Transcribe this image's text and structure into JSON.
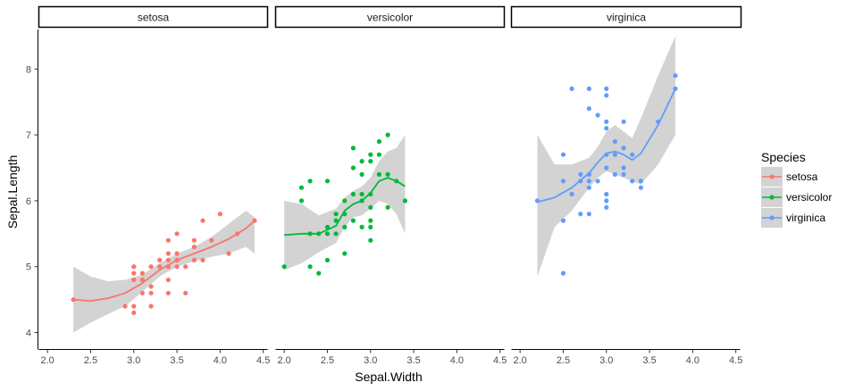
{
  "chart_data": {
    "type": "scatter",
    "facet_variable": "Species",
    "facets": [
      "setosa",
      "versicolor",
      "virginica"
    ],
    "xlabel": "Sepal.Width",
    "ylabel": "Sepal.Length",
    "xlim": [
      1.9,
      4.55
    ],
    "ylim": [
      3.75,
      8.6
    ],
    "x_ticks": [
      2.0,
      2.5,
      3.0,
      3.5,
      4.0,
      4.5
    ],
    "x_tick_labels": [
      "2.0",
      "2.5",
      "3.0",
      "3.5",
      "4.0",
      "4.5"
    ],
    "y_ticks": [
      4,
      5,
      6,
      7,
      8
    ],
    "y_tick_labels": [
      "4",
      "5",
      "6",
      "7",
      "8"
    ],
    "grid": false,
    "smoother": "loess with confidence band",
    "legend": {
      "title": "Species",
      "position": "right",
      "entries": [
        "setosa",
        "versicolor",
        "virginica"
      ]
    },
    "colors": {
      "setosa": "#F8766D",
      "versicolor": "#00BA38",
      "virginica": "#619CFF",
      "band": "#D3D3D3"
    },
    "series": [
      {
        "name": "setosa",
        "points": [
          [
            2.3,
            4.5
          ],
          [
            2.9,
            4.4
          ],
          [
            3.0,
            4.3
          ],
          [
            3.0,
            4.4
          ],
          [
            3.0,
            4.8
          ],
          [
            3.0,
            4.9
          ],
          [
            3.0,
            5.0
          ],
          [
            3.1,
            4.6
          ],
          [
            3.1,
            4.8
          ],
          [
            3.1,
            4.9
          ],
          [
            3.2,
            4.4
          ],
          [
            3.2,
            4.6
          ],
          [
            3.2,
            4.7
          ],
          [
            3.2,
            5.0
          ],
          [
            3.3,
            5.0
          ],
          [
            3.3,
            5.1
          ],
          [
            3.4,
            4.6
          ],
          [
            3.4,
            4.8
          ],
          [
            3.4,
            5.0
          ],
          [
            3.4,
            5.1
          ],
          [
            3.4,
            5.2
          ],
          [
            3.4,
            5.4
          ],
          [
            3.5,
            5.0
          ],
          [
            3.5,
            5.1
          ],
          [
            3.5,
            5.2
          ],
          [
            3.5,
            5.5
          ],
          [
            3.6,
            4.6
          ],
          [
            3.6,
            5.0
          ],
          [
            3.7,
            5.1
          ],
          [
            3.7,
            5.3
          ],
          [
            3.7,
            5.4
          ],
          [
            3.8,
            5.1
          ],
          [
            3.8,
            5.7
          ],
          [
            3.9,
            5.4
          ],
          [
            4.0,
            5.8
          ],
          [
            4.1,
            5.2
          ],
          [
            4.2,
            5.5
          ],
          [
            4.4,
            5.7
          ],
          [
            3.0,
            5.0
          ],
          [
            3.4,
            5.0
          ]
        ],
        "fit": [
          [
            2.3,
            4.5
          ],
          [
            2.5,
            4.48
          ],
          [
            2.7,
            4.52
          ],
          [
            2.9,
            4.6
          ],
          [
            3.1,
            4.75
          ],
          [
            3.3,
            4.95
          ],
          [
            3.5,
            5.1
          ],
          [
            3.7,
            5.2
          ],
          [
            3.9,
            5.3
          ],
          [
            4.1,
            5.42
          ],
          [
            4.3,
            5.58
          ],
          [
            4.4,
            5.7
          ]
        ],
        "band_upper": [
          [
            2.3,
            5.0
          ],
          [
            2.5,
            4.85
          ],
          [
            2.7,
            4.78
          ],
          [
            2.9,
            4.8
          ],
          [
            3.1,
            4.88
          ],
          [
            3.3,
            5.05
          ],
          [
            3.5,
            5.2
          ],
          [
            3.7,
            5.3
          ],
          [
            3.9,
            5.45
          ],
          [
            4.1,
            5.65
          ],
          [
            4.3,
            5.85
          ],
          [
            4.4,
            5.75
          ]
        ],
        "band_lower": [
          [
            2.3,
            4.0
          ],
          [
            2.5,
            4.15
          ],
          [
            2.7,
            4.28
          ],
          [
            2.9,
            4.4
          ],
          [
            3.1,
            4.62
          ],
          [
            3.3,
            4.85
          ],
          [
            3.5,
            5.0
          ],
          [
            3.7,
            5.08
          ],
          [
            3.9,
            5.15
          ],
          [
            4.1,
            5.2
          ],
          [
            4.3,
            5.3
          ],
          [
            4.4,
            5.2
          ]
        ]
      },
      {
        "name": "versicolor",
        "points": [
          [
            2.0,
            5.0
          ],
          [
            2.2,
            6.0
          ],
          [
            2.2,
            6.2
          ],
          [
            2.3,
            5.0
          ],
          [
            2.3,
            5.5
          ],
          [
            2.3,
            6.3
          ],
          [
            2.4,
            4.9
          ],
          [
            2.4,
            5.5
          ],
          [
            2.5,
            5.1
          ],
          [
            2.5,
            5.5
          ],
          [
            2.5,
            5.6
          ],
          [
            2.5,
            6.3
          ],
          [
            2.6,
            5.5
          ],
          [
            2.6,
            5.7
          ],
          [
            2.6,
            5.8
          ],
          [
            2.7,
            5.2
          ],
          [
            2.7,
            5.6
          ],
          [
            2.7,
            5.8
          ],
          [
            2.7,
            6.0
          ],
          [
            2.8,
            5.7
          ],
          [
            2.8,
            6.1
          ],
          [
            2.8,
            6.5
          ],
          [
            2.8,
            6.8
          ],
          [
            2.9,
            5.6
          ],
          [
            2.9,
            6.0
          ],
          [
            2.9,
            6.1
          ],
          [
            2.9,
            6.4
          ],
          [
            2.9,
            6.6
          ],
          [
            3.0,
            5.4
          ],
          [
            3.0,
            5.6
          ],
          [
            3.0,
            5.7
          ],
          [
            3.0,
            5.9
          ],
          [
            3.0,
            6.1
          ],
          [
            3.0,
            6.6
          ],
          [
            3.0,
            6.7
          ],
          [
            3.1,
            6.4
          ],
          [
            3.1,
            6.7
          ],
          [
            3.1,
            6.9
          ],
          [
            3.2,
            5.9
          ],
          [
            3.2,
            6.4
          ],
          [
            3.2,
            7.0
          ],
          [
            3.3,
            6.3
          ],
          [
            3.4,
            6.0
          ]
        ],
        "fit": [
          [
            2.0,
            5.48
          ],
          [
            2.2,
            5.5
          ],
          [
            2.4,
            5.5
          ],
          [
            2.6,
            5.62
          ],
          [
            2.7,
            5.85
          ],
          [
            2.8,
            5.95
          ],
          [
            2.9,
            6.0
          ],
          [
            3.0,
            6.12
          ],
          [
            3.1,
            6.3
          ],
          [
            3.2,
            6.35
          ],
          [
            3.3,
            6.3
          ],
          [
            3.4,
            6.22
          ]
        ],
        "band_upper": [
          [
            2.0,
            6.0
          ],
          [
            2.2,
            5.95
          ],
          [
            2.4,
            5.78
          ],
          [
            2.6,
            5.88
          ],
          [
            2.7,
            6.05
          ],
          [
            2.8,
            6.15
          ],
          [
            2.9,
            6.22
          ],
          [
            3.0,
            6.35
          ],
          [
            3.1,
            6.6
          ],
          [
            3.2,
            6.75
          ],
          [
            3.3,
            6.8
          ],
          [
            3.4,
            7.0
          ]
        ],
        "band_lower": [
          [
            2.0,
            4.95
          ],
          [
            2.2,
            5.05
          ],
          [
            2.4,
            5.22
          ],
          [
            2.6,
            5.36
          ],
          [
            2.7,
            5.6
          ],
          [
            2.8,
            5.75
          ],
          [
            2.9,
            5.78
          ],
          [
            3.0,
            5.88
          ],
          [
            3.1,
            6.0
          ],
          [
            3.2,
            5.95
          ],
          [
            3.3,
            5.8
          ],
          [
            3.4,
            5.5
          ]
        ]
      },
      {
        "name": "virginica",
        "points": [
          [
            2.2,
            6.0
          ],
          [
            2.5,
            4.9
          ],
          [
            2.5,
            5.7
          ],
          [
            2.5,
            6.3
          ],
          [
            2.5,
            6.7
          ],
          [
            2.6,
            6.1
          ],
          [
            2.6,
            7.7
          ],
          [
            2.7,
            5.8
          ],
          [
            2.7,
            6.3
          ],
          [
            2.7,
            6.4
          ],
          [
            2.8,
            5.8
          ],
          [
            2.8,
            6.2
          ],
          [
            2.8,
            6.3
          ],
          [
            2.8,
            6.4
          ],
          [
            2.8,
            7.4
          ],
          [
            2.8,
            7.7
          ],
          [
            2.9,
            6.3
          ],
          [
            2.9,
            7.3
          ],
          [
            3.0,
            5.9
          ],
          [
            3.0,
            6.0
          ],
          [
            3.0,
            6.1
          ],
          [
            3.0,
            6.5
          ],
          [
            3.0,
            6.7
          ],
          [
            3.0,
            7.1
          ],
          [
            3.0,
            7.2
          ],
          [
            3.0,
            7.6
          ],
          [
            3.0,
            7.7
          ],
          [
            3.1,
            6.4
          ],
          [
            3.1,
            6.7
          ],
          [
            3.1,
            6.9
          ],
          [
            3.2,
            6.4
          ],
          [
            3.2,
            6.5
          ],
          [
            3.2,
            6.8
          ],
          [
            3.2,
            7.2
          ],
          [
            3.3,
            6.3
          ],
          [
            3.3,
            6.7
          ],
          [
            3.4,
            6.2
          ],
          [
            3.4,
            6.3
          ],
          [
            3.6,
            7.2
          ],
          [
            3.8,
            7.7
          ],
          [
            3.8,
            7.9
          ]
        ],
        "fit": [
          [
            2.2,
            5.98
          ],
          [
            2.4,
            6.05
          ],
          [
            2.6,
            6.2
          ],
          [
            2.8,
            6.42
          ],
          [
            2.9,
            6.58
          ],
          [
            3.0,
            6.72
          ],
          [
            3.1,
            6.75
          ],
          [
            3.2,
            6.7
          ],
          [
            3.3,
            6.62
          ],
          [
            3.4,
            6.72
          ],
          [
            3.6,
            7.15
          ],
          [
            3.8,
            7.7
          ]
        ],
        "band_upper": [
          [
            2.2,
            7.0
          ],
          [
            2.4,
            6.55
          ],
          [
            2.6,
            6.55
          ],
          [
            2.8,
            6.65
          ],
          [
            2.9,
            6.82
          ],
          [
            3.0,
            7.05
          ],
          [
            3.1,
            7.15
          ],
          [
            3.2,
            7.05
          ],
          [
            3.3,
            6.95
          ],
          [
            3.4,
            7.25
          ],
          [
            3.6,
            7.9
          ],
          [
            3.8,
            8.5
          ]
        ],
        "band_lower": [
          [
            2.2,
            4.85
          ],
          [
            2.4,
            5.6
          ],
          [
            2.6,
            5.85
          ],
          [
            2.8,
            6.2
          ],
          [
            2.9,
            6.35
          ],
          [
            3.0,
            6.45
          ],
          [
            3.1,
            6.4
          ],
          [
            3.2,
            6.35
          ],
          [
            3.3,
            6.3
          ],
          [
            3.4,
            6.25
          ],
          [
            3.6,
            6.55
          ],
          [
            3.8,
            7.0
          ]
        ]
      }
    ]
  }
}
